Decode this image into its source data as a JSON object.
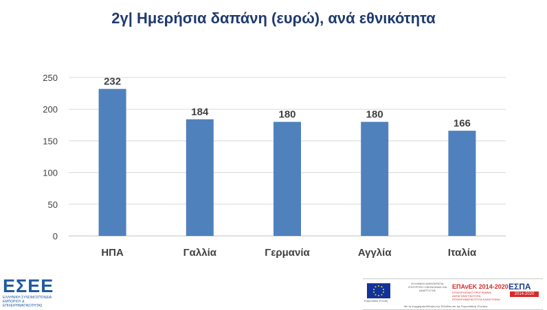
{
  "chart_data": {
    "type": "bar",
    "title": "2γ| Ημερήσια δαπάνη (ευρώ), ανά εθνικότητα",
    "categories": [
      "ΗΠΑ",
      "Γαλλία",
      "Γερμανία",
      "Αγγλία",
      "Ιταλία"
    ],
    "values": [
      232,
      184,
      180,
      180,
      166
    ],
    "ylim": [
      0,
      250
    ],
    "yticks": [
      0,
      50,
      100,
      150,
      200,
      250
    ],
    "grid": true,
    "bar_color": "#4f81bd",
    "legend": "none"
  },
  "logo": {
    "letters": "ΕΣΕΕ",
    "subtitle_line1": "ΕΛΛΗΝΙΚΗ ΣΥΝΟΜΟΣΠΟΝΔΙΑ",
    "subtitle_line2": "ΕΜΠΟΡΙΟΥ & ΕΠΙΧΕΙΡΗΜΑΤΙΚΟΤΗΤΑΣ"
  },
  "footer": {
    "eu_caption": "Ευρωπαϊκή Ένωση",
    "gr_caption": "ΕΛΛΗΝΙΚΗ ΔΗΜΟΚΡΑΤΙΑ ΥΠΟΥΡΓΕΙΟ ΟΙΚΟΝΟΜΙΑΣ ΚΑΙ ΑΝΑΠΤΥΞΗΣ",
    "epanek": "ΕΠΑνΕΚ 2014-2020",
    "epanek_sub": "ΕΠΙΧΕΙΡΗΣΙΑΚΟ ΠΡΟΓΡΑΜΜΑ ΑΝΤΑΓΩΝΙΣΤΙΚΟΤΗΤΑ ΕΠΙΧΕΙΡΗΜΑΤΙΚΟΤΗΤΑ ΚΑΙΝΟΤΟΜΙΑ",
    "espa": "ΕΣΠΑ",
    "espa_years": "2014-2020",
    "caption": "Με τη συγχρηματοδότηση της Ελλάδας και της Ευρωπαϊκής Ένωσης"
  }
}
